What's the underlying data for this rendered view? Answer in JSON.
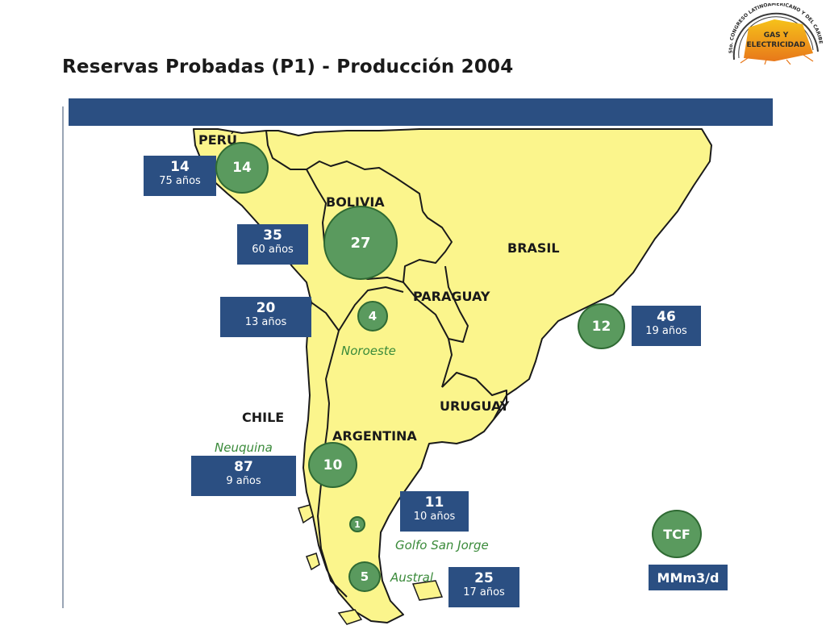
{
  "title": "Reservas Probadas (P1) -  Producción 2004",
  "logo": {
    "ring_text": "5to. CONGRESO LATINOAMERICANO Y DEL CARIBE",
    "center_text_1": "GAS Y",
    "center_text_2": "ELECTRICIDAD"
  },
  "countries": {
    "peru": "PERÚ",
    "bolivia": "BOLIVIA",
    "brasil": "BRASIL",
    "paraguay": "PARAGUAY",
    "uruguay": "URUGUAY",
    "chile": "CHILE",
    "argentina": "ARGENTINA"
  },
  "basins": {
    "noroeste": "Noroeste",
    "neuquina": "Neuquina",
    "golfo": "Golfo San Jorge",
    "austral": "Austral"
  },
  "reserves_tcf": {
    "peru": "14",
    "bolivia": "27",
    "noroeste": "4",
    "brasil": "12",
    "neuquina": "10",
    "golfo": "1",
    "austral": "5"
  },
  "production_mmm3d": {
    "peru": {
      "value": "14",
      "years": "75 años"
    },
    "bolivia": {
      "value": "35",
      "years": "60 años"
    },
    "noroeste": {
      "value": "20",
      "years": "13 años"
    },
    "brasil": {
      "value": "46",
      "years": "19 años"
    },
    "neuquina": {
      "value": "87",
      "years": "9 años"
    },
    "golfo": {
      "value": "11",
      "years": "10 años"
    },
    "austral": {
      "value": "25",
      "years": "17 años"
    }
  },
  "legend": {
    "circle_label": "TCF",
    "box_label": "MMm3/d"
  },
  "colors": {
    "land": "#fbf58c",
    "box": "#2b4f82",
    "circle": "#5a9a5e",
    "basin_text": "#3a8a3a"
  }
}
